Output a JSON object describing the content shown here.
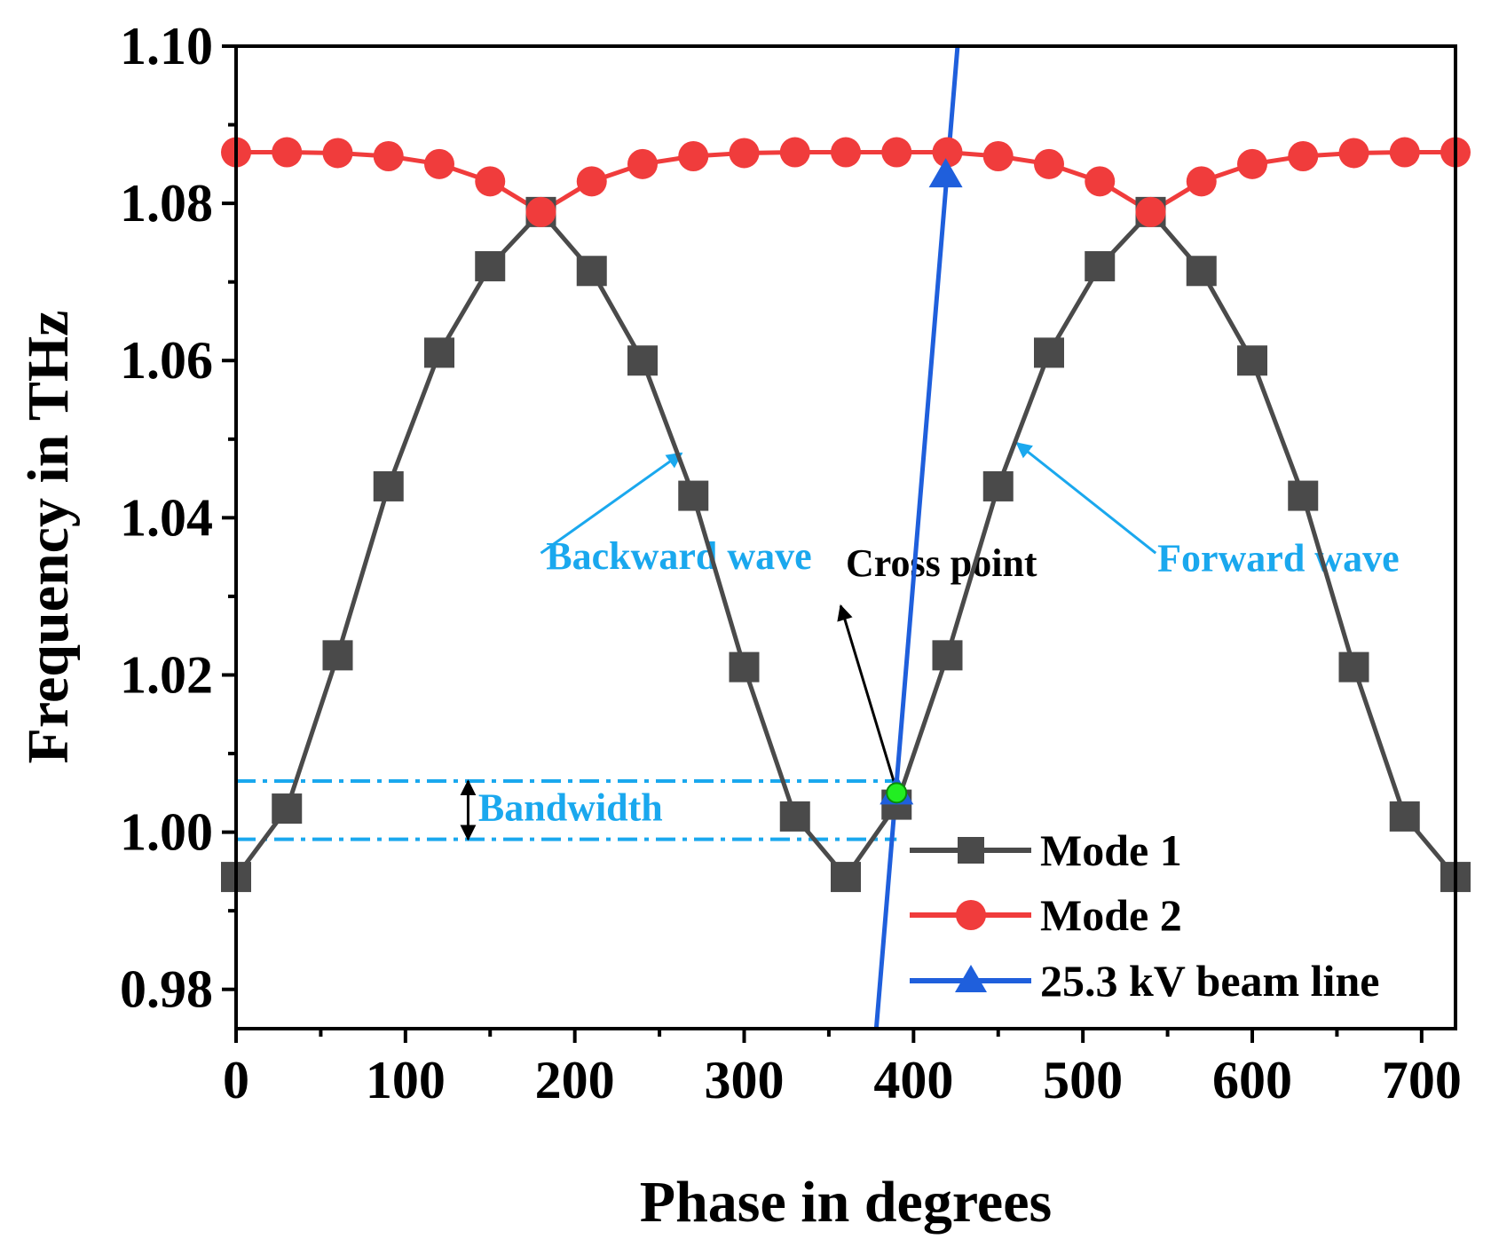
{
  "chart_data": {
    "type": "line",
    "title": "",
    "xlabel": "Phase in degrees",
    "ylabel": "Frequency in THz",
    "xlim": [
      0,
      720
    ],
    "ylim": [
      0.975,
      1.1
    ],
    "xticks": [
      0,
      100,
      200,
      300,
      400,
      500,
      600,
      700
    ],
    "xtick_labels": [
      "0",
      "100",
      "200",
      "300",
      "400",
      "500",
      "600",
      "700"
    ],
    "yticks": [
      0.98,
      1.0,
      1.02,
      1.04,
      1.06,
      1.08,
      1.1
    ],
    "ytick_labels": [
      "0.98",
      "1.00",
      "1.02",
      "1.04",
      "1.06",
      "1.08",
      "1.10"
    ],
    "grid": false,
    "legend_position": "bottom-right",
    "series": [
      {
        "name": "Mode 1",
        "color": "#4a4a4a",
        "marker": "square",
        "x": [
          0,
          30,
          60,
          90,
          120,
          150,
          180,
          210,
          240,
          270,
          300,
          330,
          360,
          390,
          420,
          450,
          480,
          510,
          540,
          570,
          600,
          630,
          660,
          690,
          720
        ],
        "y": [
          0.9943,
          1.003,
          1.0225,
          1.044,
          1.061,
          1.072,
          1.0789,
          1.0714,
          1.06,
          1.0428,
          1.021,
          1.002,
          0.9943,
          1.0035,
          1.0225,
          1.044,
          1.061,
          1.072,
          1.0789,
          1.0714,
          1.06,
          1.0428,
          1.021,
          1.002,
          0.9943
        ]
      },
      {
        "name": "Mode 2",
        "color": "#f03c3c",
        "marker": "circle",
        "x": [
          0,
          30,
          60,
          90,
          120,
          150,
          180,
          210,
          240,
          270,
          300,
          330,
          360,
          390,
          420,
          450,
          480,
          510,
          540,
          570,
          600,
          630,
          660,
          690,
          720
        ],
        "y": [
          1.0865,
          1.0865,
          1.0864,
          1.086,
          1.085,
          1.0828,
          1.0789,
          1.0828,
          1.085,
          1.086,
          1.0864,
          1.0865,
          1.0865,
          1.0865,
          1.0865,
          1.086,
          1.085,
          1.0828,
          1.0789,
          1.0828,
          1.085,
          1.086,
          1.0864,
          1.0865,
          1.0865
        ]
      },
      {
        "name": "25.3 kV beam line",
        "color": "#1f5fdc",
        "marker": "triangle",
        "x": [
          378,
          426
        ],
        "y": [
          0.975,
          1.1
        ],
        "marker_points": [
          {
            "x": 390,
            "y": 1.005
          },
          {
            "x": 419,
            "y": 1.0835
          }
        ]
      }
    ],
    "cross_point": {
      "x": 390,
      "y": 1.005,
      "color": "#22ee22"
    },
    "bandwidth_lines": {
      "y_upper": 1.0065,
      "y_lower": 0.9991,
      "x_start": 0,
      "x_end": 390,
      "color": "#1aa8ee"
    },
    "annotations": [
      {
        "id": "backward",
        "text": "Backward wave",
        "color": "#1aa8ee",
        "text_x": 183,
        "text_y": 1.0335,
        "arrow_from": [
          180,
          1.0355
        ],
        "arrow_to": [
          263,
          1.0482
        ]
      },
      {
        "id": "forward",
        "text": "Forward wave",
        "color": "#1aa8ee",
        "text_x": 544,
        "text_y": 1.0332,
        "arrow_from": [
          543,
          1.0355
        ],
        "arrow_to": [
          461,
          1.0495
        ]
      },
      {
        "id": "cross",
        "text": "Cross point",
        "color": "#000000",
        "text_x": 360,
        "text_y": 1.0326,
        "arrow_from": [
          389,
          1.006
        ],
        "arrow_to": [
          357,
          1.0288
        ]
      },
      {
        "id": "bandwidth",
        "text": "Bandwidth",
        "color": "#1aa8ee",
        "text_x": 143,
        "text_y": 1.0015,
        "arrow_from": [
          137,
          1.0065
        ],
        "arrow_to": [
          137,
          0.9991
        ]
      }
    ]
  }
}
